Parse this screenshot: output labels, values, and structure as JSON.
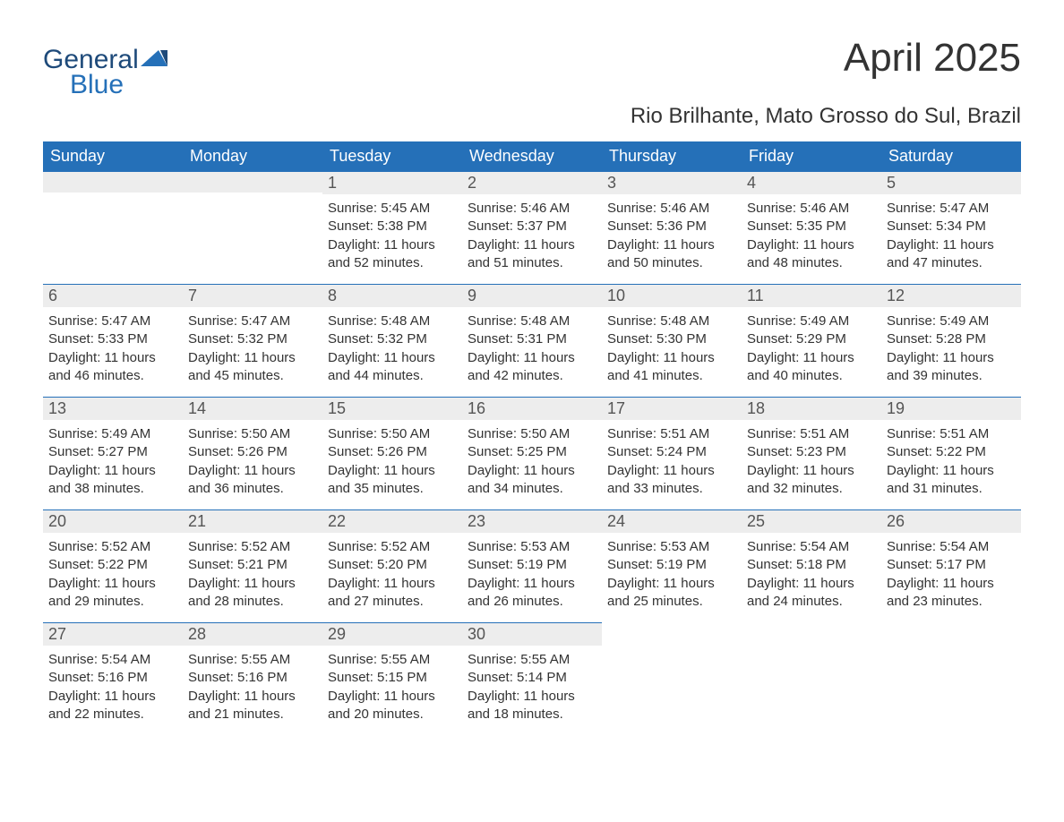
{
  "logo": {
    "line1": "General",
    "line2": "Blue"
  },
  "title": "April 2025",
  "subtitle": "Rio Brilhante, Mato Grosso do Sul, Brazil",
  "colors": {
    "header_bg": "#2570b8",
    "header_text": "#ffffff",
    "daynum_bg": "#ededed",
    "daynum_border": "#2570b8",
    "body_text": "#333333",
    "logo_dark": "#1e4a7a",
    "logo_blue": "#2570b8",
    "page_bg": "#ffffff"
  },
  "weekdays": [
    "Sunday",
    "Monday",
    "Tuesday",
    "Wednesday",
    "Thursday",
    "Friday",
    "Saturday"
  ],
  "label_sunrise": "Sunrise: ",
  "label_sunset": "Sunset: ",
  "label_daylight_1": "Daylight: ",
  "label_daylight_2": " hours and ",
  "label_daylight_3": " minutes.",
  "weeks": [
    [
      null,
      null,
      {
        "day": "1",
        "sunrise": "5:45 AM",
        "sunset": "5:38 PM",
        "dl_h": "11",
        "dl_m": "52"
      },
      {
        "day": "2",
        "sunrise": "5:46 AM",
        "sunset": "5:37 PM",
        "dl_h": "11",
        "dl_m": "51"
      },
      {
        "day": "3",
        "sunrise": "5:46 AM",
        "sunset": "5:36 PM",
        "dl_h": "11",
        "dl_m": "50"
      },
      {
        "day": "4",
        "sunrise": "5:46 AM",
        "sunset": "5:35 PM",
        "dl_h": "11",
        "dl_m": "48"
      },
      {
        "day": "5",
        "sunrise": "5:47 AM",
        "sunset": "5:34 PM",
        "dl_h": "11",
        "dl_m": "47"
      }
    ],
    [
      {
        "day": "6",
        "sunrise": "5:47 AM",
        "sunset": "5:33 PM",
        "dl_h": "11",
        "dl_m": "46"
      },
      {
        "day": "7",
        "sunrise": "5:47 AM",
        "sunset": "5:32 PM",
        "dl_h": "11",
        "dl_m": "45"
      },
      {
        "day": "8",
        "sunrise": "5:48 AM",
        "sunset": "5:32 PM",
        "dl_h": "11",
        "dl_m": "44"
      },
      {
        "day": "9",
        "sunrise": "5:48 AM",
        "sunset": "5:31 PM",
        "dl_h": "11",
        "dl_m": "42"
      },
      {
        "day": "10",
        "sunrise": "5:48 AM",
        "sunset": "5:30 PM",
        "dl_h": "11",
        "dl_m": "41"
      },
      {
        "day": "11",
        "sunrise": "5:49 AM",
        "sunset": "5:29 PM",
        "dl_h": "11",
        "dl_m": "40"
      },
      {
        "day": "12",
        "sunrise": "5:49 AM",
        "sunset": "5:28 PM",
        "dl_h": "11",
        "dl_m": "39"
      }
    ],
    [
      {
        "day": "13",
        "sunrise": "5:49 AM",
        "sunset": "5:27 PM",
        "dl_h": "11",
        "dl_m": "38"
      },
      {
        "day": "14",
        "sunrise": "5:50 AM",
        "sunset": "5:26 PM",
        "dl_h": "11",
        "dl_m": "36"
      },
      {
        "day": "15",
        "sunrise": "5:50 AM",
        "sunset": "5:26 PM",
        "dl_h": "11",
        "dl_m": "35"
      },
      {
        "day": "16",
        "sunrise": "5:50 AM",
        "sunset": "5:25 PM",
        "dl_h": "11",
        "dl_m": "34"
      },
      {
        "day": "17",
        "sunrise": "5:51 AM",
        "sunset": "5:24 PM",
        "dl_h": "11",
        "dl_m": "33"
      },
      {
        "day": "18",
        "sunrise": "5:51 AM",
        "sunset": "5:23 PM",
        "dl_h": "11",
        "dl_m": "32"
      },
      {
        "day": "19",
        "sunrise": "5:51 AM",
        "sunset": "5:22 PM",
        "dl_h": "11",
        "dl_m": "31"
      }
    ],
    [
      {
        "day": "20",
        "sunrise": "5:52 AM",
        "sunset": "5:22 PM",
        "dl_h": "11",
        "dl_m": "29"
      },
      {
        "day": "21",
        "sunrise": "5:52 AM",
        "sunset": "5:21 PM",
        "dl_h": "11",
        "dl_m": "28"
      },
      {
        "day": "22",
        "sunrise": "5:52 AM",
        "sunset": "5:20 PM",
        "dl_h": "11",
        "dl_m": "27"
      },
      {
        "day": "23",
        "sunrise": "5:53 AM",
        "sunset": "5:19 PM",
        "dl_h": "11",
        "dl_m": "26"
      },
      {
        "day": "24",
        "sunrise": "5:53 AM",
        "sunset": "5:19 PM",
        "dl_h": "11",
        "dl_m": "25"
      },
      {
        "day": "25",
        "sunrise": "5:54 AM",
        "sunset": "5:18 PM",
        "dl_h": "11",
        "dl_m": "24"
      },
      {
        "day": "26",
        "sunrise": "5:54 AM",
        "sunset": "5:17 PM",
        "dl_h": "11",
        "dl_m": "23"
      }
    ],
    [
      {
        "day": "27",
        "sunrise": "5:54 AM",
        "sunset": "5:16 PM",
        "dl_h": "11",
        "dl_m": "22"
      },
      {
        "day": "28",
        "sunrise": "5:55 AM",
        "sunset": "5:16 PM",
        "dl_h": "11",
        "dl_m": "21"
      },
      {
        "day": "29",
        "sunrise": "5:55 AM",
        "sunset": "5:15 PM",
        "dl_h": "11",
        "dl_m": "20"
      },
      {
        "day": "30",
        "sunrise": "5:55 AM",
        "sunset": "5:14 PM",
        "dl_h": "11",
        "dl_m": "18"
      },
      null,
      null,
      null
    ]
  ]
}
